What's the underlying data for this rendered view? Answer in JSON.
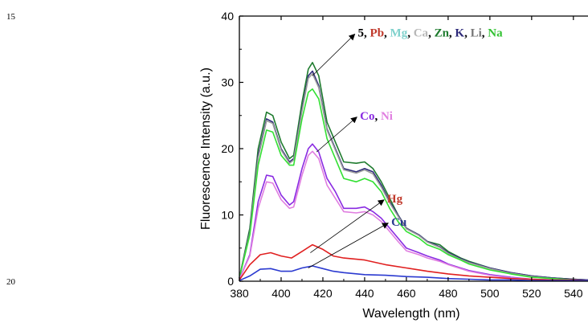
{
  "page": {
    "margin_numbers": [
      "15",
      "20"
    ]
  },
  "chart_data": {
    "type": "line",
    "title": "",
    "xlabel": "Wavelength (nm)",
    "ylabel": "Fluorescence Intensity (a.u.)",
    "xlim": [
      380,
      547
    ],
    "ylim": [
      0,
      40
    ],
    "xticks": [
      380,
      400,
      420,
      440,
      460,
      480,
      500,
      520,
      540
    ],
    "yticks": [
      0,
      10,
      20,
      30,
      40
    ],
    "grid": false,
    "annotations": [
      {
        "id": "group1",
        "parts": [
          {
            "text": "5",
            "color": "#000000"
          },
          {
            "text": ", ",
            "color": "#000000"
          },
          {
            "text": "Pb",
            "color": "#c0392b"
          },
          {
            "text": ", ",
            "color": "#000000"
          },
          {
            "text": "Mg",
            "color": "#7fd1cc"
          },
          {
            "text": ", ",
            "color": "#000000"
          },
          {
            "text": "Ca",
            "color": "#b8b8b8"
          },
          {
            "text": ", ",
            "color": "#000000"
          },
          {
            "text": "Zn",
            "color": "#1e7b2e"
          },
          {
            "text": ", ",
            "color": "#000000"
          },
          {
            "text": "K",
            "color": "#2e2a7a"
          },
          {
            "text": ", ",
            "color": "#000000"
          },
          {
            "text": "Li",
            "color": "#777777"
          },
          {
            "text": ", ",
            "color": "#000000"
          },
          {
            "text": "Na",
            "color": "#33c233"
          }
        ],
        "point_to": [
          415,
          31
        ],
        "text_at": [
          436,
          37.5
        ]
      },
      {
        "id": "group2",
        "parts": [
          {
            "text": "Co",
            "color": "#8a2be2"
          },
          {
            "text": ", ",
            "color": "#000000"
          },
          {
            "text": "Ni",
            "color": "#e07ee0"
          }
        ],
        "point_to": [
          417,
          19.5
        ],
        "text_at": [
          437,
          25
        ]
      },
      {
        "id": "hg",
        "parts": [
          {
            "text": "Hg",
            "color": "#c0392b"
          }
        ],
        "point_to": [
          414,
          4.3
        ],
        "text_at": [
          450,
          12.5
        ]
      },
      {
        "id": "cu",
        "parts": [
          {
            "text": "Cu",
            "color": "#2b3a8f"
          }
        ],
        "point_to": [
          413,
          2.0
        ],
        "text_at": [
          452,
          9
        ]
      }
    ],
    "series": [
      {
        "color": "#1e7b2e",
        "x": [
          380,
          385,
          389,
          393,
          396,
          400,
          404,
          406,
          410,
          413,
          415,
          418,
          422,
          426,
          430,
          436,
          440,
          444,
          448,
          452,
          456,
          460,
          466,
          470,
          476,
          480,
          486,
          490,
          500,
          510,
          520,
          530,
          540,
          547
        ],
        "y": [
          0.5,
          8,
          20,
          25.5,
          25,
          21,
          18.5,
          19,
          27,
          32,
          33,
          31,
          24,
          21,
          18,
          17.8,
          18,
          17,
          15,
          12.5,
          10,
          8,
          7,
          6,
          5.5,
          4.5,
          3.5,
          3,
          2,
          1.3,
          0.8,
          0.5,
          0.3,
          0.2
        ]
      },
      {
        "color": "#2e2a7a",
        "x": [
          380,
          385,
          389,
          393,
          396,
          400,
          404,
          406,
          410,
          413,
          415,
          418,
          422,
          426,
          430,
          436,
          440,
          444,
          448,
          452,
          456,
          460,
          466,
          470,
          476,
          480,
          486,
          490,
          500,
          510,
          520,
          530,
          540,
          547
        ],
        "y": [
          0.5,
          7.5,
          19,
          24.5,
          24,
          20,
          18,
          18.5,
          26,
          31,
          31.7,
          29.5,
          23,
          20,
          17,
          16.5,
          17,
          16.5,
          14.5,
          12,
          10,
          8,
          7,
          6,
          5.2,
          4.3,
          3.4,
          2.9,
          2,
          1.3,
          0.8,
          0.5,
          0.3,
          0.2
        ]
      },
      {
        "color": "#9c9c9c",
        "x": [
          380,
          385,
          389,
          393,
          396,
          400,
          404,
          406,
          410,
          413,
          415,
          418,
          422,
          426,
          430,
          436,
          440,
          444,
          448,
          452,
          456,
          460,
          466,
          470,
          476,
          480,
          486,
          490,
          500,
          510,
          520,
          530,
          540,
          547
        ],
        "y": [
          0.5,
          7.3,
          18.6,
          24.2,
          23.8,
          19.8,
          17.8,
          18.3,
          25.7,
          30.6,
          31.3,
          29.2,
          22.8,
          19.8,
          16.8,
          16.3,
          16.8,
          16.2,
          14.2,
          11.8,
          9.8,
          7.9,
          6.9,
          5.9,
          5.1,
          4.2,
          3.3,
          2.8,
          1.9,
          1.2,
          0.7,
          0.4,
          0.2,
          0.1
        ]
      },
      {
        "color": "#33e033",
        "x": [
          380,
          385,
          389,
          393,
          396,
          400,
          404,
          406,
          410,
          413,
          415,
          418,
          422,
          426,
          430,
          436,
          440,
          444,
          448,
          452,
          456,
          460,
          466,
          470,
          476,
          480,
          486,
          490,
          500,
          510,
          520,
          530,
          540,
          547
        ],
        "y": [
          0.5,
          7,
          17.5,
          22.8,
          22.5,
          19,
          17.5,
          17.5,
          24.5,
          28.5,
          29,
          27.5,
          21.5,
          18.5,
          15.5,
          15,
          15.5,
          15,
          13.5,
          11,
          9,
          7.5,
          6.5,
          5.5,
          4.8,
          4,
          3.2,
          2.6,
          1.7,
          1.1,
          0.6,
          0.4,
          0.2,
          0.1
        ]
      },
      {
        "color": "#8a2be2",
        "x": [
          380,
          385,
          389,
          393,
          396,
          400,
          404,
          406,
          410,
          413,
          415,
          418,
          422,
          426,
          430,
          436,
          440,
          444,
          448,
          452,
          456,
          460,
          466,
          470,
          476,
          480,
          486,
          490,
          500,
          510,
          520,
          530,
          540,
          547
        ],
        "y": [
          0.3,
          4,
          12,
          16,
          15.8,
          13,
          11.5,
          12,
          17,
          20,
          20.7,
          19.5,
          15.5,
          13.5,
          11,
          11,
          11.2,
          10.5,
          9.5,
          8,
          6.5,
          5,
          4.3,
          3.8,
          3.2,
          2.6,
          2,
          1.6,
          1,
          0.6,
          0.3,
          0.2,
          0.1,
          0.1
        ]
      },
      {
        "color": "#e07ee0",
        "x": [
          380,
          385,
          389,
          393,
          396,
          400,
          404,
          406,
          410,
          413,
          415,
          418,
          422,
          426,
          430,
          436,
          440,
          444,
          448,
          452,
          456,
          460,
          466,
          470,
          476,
          480,
          486,
          490,
          500,
          510,
          520,
          530,
          540,
          547
        ],
        "y": [
          0.3,
          3.8,
          11,
          15,
          14.8,
          12.3,
          11,
          11.2,
          16,
          19,
          19.6,
          18.5,
          14.5,
          12.5,
          10.5,
          10.3,
          10.5,
          10,
          9,
          7.5,
          6,
          4.6,
          4,
          3.5,
          3,
          2.5,
          1.9,
          1.5,
          0.9,
          0.5,
          0.3,
          0.2,
          0.1,
          0.1
        ]
      },
      {
        "color": "#e02020",
        "x": [
          380,
          385,
          390,
          395,
          400,
          405,
          410,
          415,
          420,
          425,
          430,
          440,
          450,
          460,
          470,
          480,
          490,
          500,
          510,
          520,
          530,
          540,
          547
        ],
        "y": [
          0.2,
          2.5,
          4,
          4.3,
          3.8,
          3.5,
          4.5,
          5.5,
          4.8,
          3.8,
          3.5,
          3.2,
          2.5,
          2,
          1.5,
          1.1,
          0.8,
          0.6,
          0.4,
          0.3,
          0.2,
          0.2,
          0.1
        ]
      },
      {
        "color": "#2b3ad0",
        "x": [
          380,
          385,
          390,
          395,
          400,
          405,
          410,
          415,
          420,
          425,
          430,
          440,
          450,
          460,
          470,
          480,
          490,
          500,
          510,
          520,
          530,
          540,
          547
        ],
        "y": [
          0.1,
          0.8,
          1.8,
          1.9,
          1.5,
          1.5,
          2,
          2.3,
          1.9,
          1.5,
          1.3,
          1,
          0.9,
          0.7,
          0.6,
          0.4,
          0.3,
          0.2,
          0.2,
          0.1,
          0.1,
          0.1,
          0.1
        ]
      }
    ]
  }
}
